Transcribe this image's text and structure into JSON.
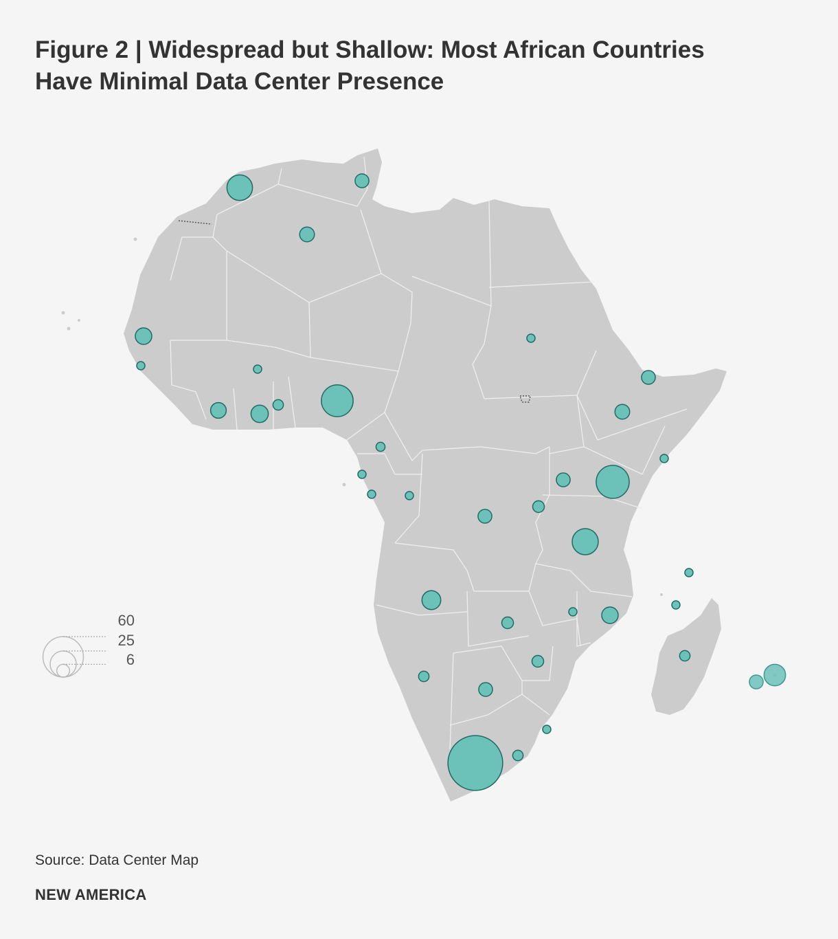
{
  "title_line1": "Figure 2 | Widespread but Shallow: Most African Countries",
  "title_line2": "Have Minimal Data Center Presence",
  "source": "Source: Data Center Map",
  "brand": "NEW AMERICA",
  "colors": {
    "background": "#f5f5f5",
    "land": "#cccccc",
    "border": "#eeeeee",
    "bubble_fill": "#6cc1b8",
    "bubble_stroke": "#1f6b63",
    "legend_stroke": "#bbbbbb",
    "text": "#333333"
  },
  "legend": {
    "values": [
      60,
      25,
      6
    ],
    "labels": [
      "60",
      "25",
      "6"
    ]
  },
  "map_data": {
    "type": "proportional-symbol-map",
    "region": "Africa",
    "metric": "data centers",
    "points": [
      {
        "id": "morocco",
        "value": 24
      },
      {
        "id": "tunisia",
        "value": 7
      },
      {
        "id": "algeria",
        "value": 8
      },
      {
        "id": "senegal",
        "value": 10
      },
      {
        "id": "guinea",
        "value": 2
      },
      {
        "id": "burkina-faso",
        "value": 2
      },
      {
        "id": "cote-divoire",
        "value": 9
      },
      {
        "id": "ghana",
        "value": 11
      },
      {
        "id": "togo-benin",
        "value": 4
      },
      {
        "id": "nigeria",
        "value": 37
      },
      {
        "id": "cameroon",
        "value": 3
      },
      {
        "id": "equatorial-guinea",
        "value": 2
      },
      {
        "id": "gabon",
        "value": 2
      },
      {
        "id": "congo",
        "value": 2
      },
      {
        "id": "sudan",
        "value": 2
      },
      {
        "id": "djibouti",
        "value": 7
      },
      {
        "id": "ethiopia",
        "value": 8
      },
      {
        "id": "somalia",
        "value": 2
      },
      {
        "id": "uganda",
        "value": 7
      },
      {
        "id": "kenya",
        "value": 40
      },
      {
        "id": "rwanda",
        "value": 5
      },
      {
        "id": "dr-congo",
        "value": 7
      },
      {
        "id": "tanzania",
        "value": 25
      },
      {
        "id": "angola",
        "value": 13
      },
      {
        "id": "zambia",
        "value": 5
      },
      {
        "id": "malawi",
        "value": 2
      },
      {
        "id": "mozambique",
        "value": 10
      },
      {
        "id": "seychelles",
        "value": 2
      },
      {
        "id": "comoros",
        "value": 2
      },
      {
        "id": "madagascar",
        "value": 4
      },
      {
        "id": "zimbabwe",
        "value": 5
      },
      {
        "id": "namibia",
        "value": 4
      },
      {
        "id": "botswana",
        "value": 7
      },
      {
        "id": "eswatini",
        "value": 2
      },
      {
        "id": "lesotho",
        "value": 4
      },
      {
        "id": "south-africa",
        "value": 110
      },
      {
        "id": "mauritius",
        "value": 17
      },
      {
        "id": "reunion",
        "value": 7
      }
    ]
  }
}
